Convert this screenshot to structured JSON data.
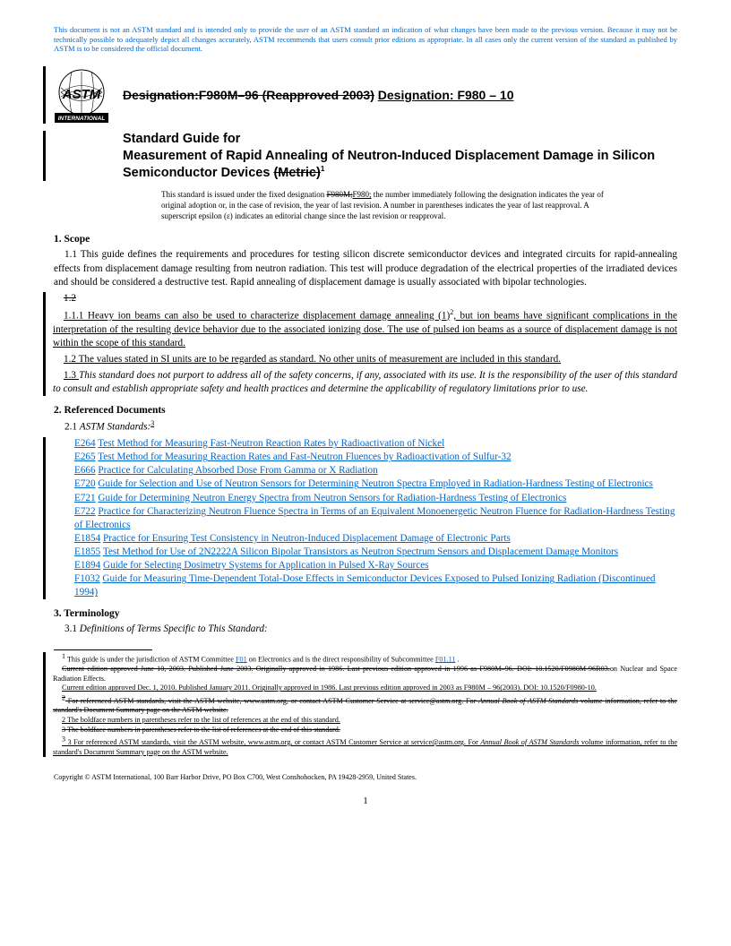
{
  "disclaimer": "This document is not an ASTM standard and is intended only to provide the user of an ASTM standard an indication of what changes have been made to the previous version. Because it may not be technically possible to adequately depict all changes accurately, ASTM recommends that users consult prior editions as appropriate. In all cases only the current version of the standard as published by ASTM is to be considered the official document.",
  "designation_label": "Designation:",
  "designation_old": "F980M–96 (Reapproved 2003)",
  "designation_new_label": "Designation: ",
  "designation_new": "F980 – 10",
  "title_line1": "Standard Guide for",
  "title_line2a": "Measurement of Rapid Annealing of Neutron-Induced Displacement Damage in Silicon Semiconductor Devices",
  "title_metric": "(Metric)",
  "title_sup": "1",
  "issue_note_pre": "This standard is issued under the fixed designation ",
  "issue_strike": "F980M;",
  "issue_under": "F980;",
  "issue_note_post": " the number immediately following the designation indicates the year of original adoption or, in the case of revision, the year of last revision. A number in parentheses indicates the year of last reapproval. A superscript epsilon (ε) indicates an editorial change since the last revision or reapproval.",
  "sec1_head": "1. Scope",
  "sec1_1": "1.1 This guide defines the requirements and procedures for testing silicon discrete semiconductor devices and integrated circuits for rapid-annealing effects from displacement damage resulting from neutron radiation. This test will produce degradation of the electrical properties of the irradiated devices and should be considered a destructive test. Rapid annealing of displacement damage is usually associated with bipolar technologies.",
  "sec1_2_strike": "1.2",
  "sec1_1_1": "1.1.1 Heavy ion beams can also be used to characterize displacement damage annealing (1)",
  "sec1_1_1_sup": "2",
  "sec1_1_1_post": ", but ion beams have significant complications in the interpretation of the resulting device behavior due to the associated ionizing dose. The use of pulsed ion beams as a source of displacement damage is not within the scope of this standard.",
  "sec1_2": "1.2 The values stated in SI units are to be regarded as standard. No other units of measurement are included in this standard.",
  "sec1_3_pre": "1.3 ",
  "sec1_3": "This standard does not purport to address all of the safety concerns, if any, associated with its use. It is the responsibility of the user of this standard to consult and establish appropriate safety and health practices and determine the applicability of regulatory limitations prior to use.",
  "sec2_head": "2. Referenced Documents",
  "sec2_1_pre": "2.1 ",
  "sec2_1": "ASTM Standards:",
  "sec2_1_sup": "3",
  "refs": [
    {
      "code": "E264",
      "title": "Test Method for Measuring Fast-Neutron Reaction Rates by Radioactivation of Nickel",
      "under_code": true
    },
    {
      "code": "E265",
      "title": "Test Method for Measuring Reaction Rates and Fast-Neutron Fluences by Radioactivation of Sulfur-32",
      "under_code": true
    },
    {
      "code": "E666",
      "title": "Practice for Calculating Absorbed Dose From Gamma or X Radiation",
      "under_code": false
    },
    {
      "code": "E720",
      "title": "Guide for Selection and Use of Neutron Sensors for Determining Neutron Spectra Employed in Radiation-Hardness Testing of Electronics",
      "under_code": false
    },
    {
      "code": "E721",
      "title": "Guide for Determining Neutron Energy Spectra from Neutron Sensors for Radiation-Hardness Testing of Electronics",
      "under_code": false
    },
    {
      "code": "E722",
      "title": "Practice for Characterizing Neutron Fluence Spectra in Terms of an Equivalent Monoenergetic Neutron Fluence for Radiation-Hardness Testing of Electronics",
      "under_code": false
    },
    {
      "code": "E1854",
      "title": "Practice for Ensuring Test Consistency in Neutron-Induced Displacement Damage of Electronic Parts",
      "under_code": true
    },
    {
      "code": "E1855",
      "title": "Test Method for Use of 2N2222A Silicon Bipolar Transistors as Neutron Spectrum Sensors and Displacement Damage Monitors",
      "under_code": true
    },
    {
      "code": "E1894",
      "title": "Guide for Selecting Dosimetry Systems for Application in Pulsed X-Ray Sources",
      "under_code": true
    },
    {
      "code": "F1032",
      "title": "Guide for Measuring Time-Dependent Total-Dose Effects in Semiconductor Devices Exposed to Pulsed Ionizing Radiation (Discontinued 1994)",
      "under_code": false
    }
  ],
  "sec3_head": "3. Terminology",
  "sec3_1_pre": "3.1 ",
  "sec3_1": "Definitions of Terms Specific to This Standard:",
  "fn1_pre": "1 This guide is under the jurisdiction of ASTM Committee ",
  "fn1_link1": "F01",
  "fn1_mid": " on Electronics and is the direct responsibility of Subcommittee ",
  "fn1_link2": "F01.11",
  "fn1_post": " .",
  "fn1_strike": "Current edition approved June 10, 2003. Published June 2003. Originally approved in 1986. Last previous edition approved in 1996 as F980M–96. DOI: 10.1520/F0980M-96R03.",
  "fn1_under": "Current edition approved Dec. 1, 2010. Published January 2011. Originally approved in 1986. Last previous edition approved in 2003 as F980M – 96(2003). DOI: 10.1520/F0980-10.",
  "fn1_mid2": "on Nuclear and Space Radiation Effects.",
  "fn2_strike": "2 For referenced ASTM standards, visit the ASTM website, www.astm.org, or contact ASTM Customer Service at service@astm.org. For Annual Book of ASTM Standards volume information, refer to the standard's Document Summary page on the ASTM website.",
  "fn2_under": "2 The boldface numbers in parentheses refer to the list of references at the end of this standard.",
  "fn3_strike": "3 The boldface numbers in parentheses refer to the list of references at the end of this standard.",
  "fn3_under_pre": "3 For referenced ASTM standards, visit the ASTM website, www.astm.org, or contact ASTM Customer Service at service@astm.org. For ",
  "fn3_under_italic": "Annual Book of ASTM Standards",
  "fn3_under_post": " volume information, refer to the standard's Document Summary page on the ASTM website.",
  "copyright": "Copyright © ASTM International, 100 Barr Harbor Drive, PO Box C700, West Conshohocken, PA 19428-2959, United States.",
  "page_num": "1"
}
